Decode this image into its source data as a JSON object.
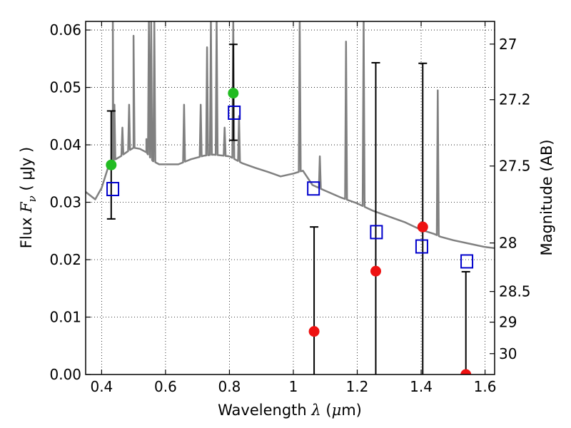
{
  "chart_data": {
    "type": "scatter",
    "title": "",
    "xlabel": {
      "prefix": "Wavelength ",
      "symbol": "λ",
      "unit_open": " (",
      "unit_mu": "μ",
      "unit_rest": "m)"
    },
    "ylabel": {
      "prefix": "Flux ",
      "symbol_main": "F",
      "symbol_sub": "ν",
      "unit": " ( μJy )"
    },
    "y2label": "Magnitude (AB)",
    "xlim": [
      0.35,
      1.63
    ],
    "ylim": [
      0.0,
      0.0615
    ],
    "x_ticks": [
      0.4,
      0.6,
      0.8,
      1.0,
      1.2,
      1.4,
      1.6
    ],
    "x_tick_labels": [
      "0.4",
      "0.6",
      "0.8",
      "1",
      "1.2",
      "1.4",
      "1.6"
    ],
    "y_ticks": [
      0.0,
      0.01,
      0.02,
      0.03,
      0.04,
      0.05,
      0.06
    ],
    "y_tick_labels": [
      "0.00",
      "0.01",
      "0.02",
      "0.03",
      "0.04",
      "0.05",
      "0.06"
    ],
    "y2_ticks": [
      27,
      27.2,
      27.5,
      28,
      28.5,
      29,
      30
    ],
    "y2_tick_labels": [
      "27",
      "27.2",
      "27.5",
      "28",
      "28.5",
      "29",
      "30"
    ],
    "grid": true,
    "colors": {
      "model": "#808080",
      "observed_good": "#22bb22",
      "observed_weak": "#ee1111",
      "model_band": "#0000cc",
      "error": "#000000"
    },
    "model_spectrum": {
      "continuum": [
        [
          0.35,
          0.0318
        ],
        [
          0.38,
          0.0305
        ],
        [
          0.4,
          0.0325
        ],
        [
          0.42,
          0.036
        ],
        [
          0.435,
          0.0372
        ],
        [
          0.46,
          0.038
        ],
        [
          0.48,
          0.0388
        ],
        [
          0.5,
          0.0395
        ],
        [
          0.52,
          0.0393
        ],
        [
          0.54,
          0.0387
        ],
        [
          0.56,
          0.0372
        ],
        [
          0.58,
          0.0366
        ],
        [
          0.6,
          0.0366
        ],
        [
          0.64,
          0.0366
        ],
        [
          0.68,
          0.0375
        ],
        [
          0.72,
          0.0381
        ],
        [
          0.75,
          0.0383
        ],
        [
          0.8,
          0.038
        ],
        [
          0.84,
          0.0368
        ],
        [
          0.88,
          0.036
        ],
        [
          0.92,
          0.0353
        ],
        [
          0.96,
          0.0345
        ],
        [
          1.0,
          0.035
        ],
        [
          1.03,
          0.0355
        ],
        [
          1.06,
          0.033
        ],
        [
          1.1,
          0.032
        ],
        [
          1.15,
          0.0308
        ],
        [
          1.2,
          0.0298
        ],
        [
          1.25,
          0.0285
        ],
        [
          1.3,
          0.0275
        ],
        [
          1.35,
          0.0265
        ],
        [
          1.4,
          0.0252
        ],
        [
          1.44,
          0.0245
        ],
        [
          1.46,
          0.024
        ],
        [
          1.5,
          0.0234
        ],
        [
          1.55,
          0.0228
        ],
        [
          1.6,
          0.0222
        ],
        [
          1.63,
          0.022
        ]
      ],
      "lines": [
        [
          0.435,
          0.0615
        ],
        [
          0.44,
          0.047
        ],
        [
          0.465,
          0.043
        ],
        [
          0.486,
          0.047
        ],
        [
          0.5,
          0.059
        ],
        [
          0.54,
          0.041
        ],
        [
          0.548,
          0.0615
        ],
        [
          0.555,
          0.0615
        ],
        [
          0.565,
          0.0615
        ],
        [
          0.658,
          0.047
        ],
        [
          0.71,
          0.047
        ],
        [
          0.73,
          0.057
        ],
        [
          0.742,
          0.0615
        ],
        [
          0.76,
          0.0615
        ],
        [
          0.785,
          0.043
        ],
        [
          0.812,
          0.0615
        ],
        [
          0.83,
          0.045
        ],
        [
          1.02,
          0.0615
        ],
        [
          1.083,
          0.038
        ],
        [
          1.165,
          0.058
        ],
        [
          1.22,
          0.0615
        ],
        [
          1.452,
          0.0495
        ]
      ]
    },
    "observed": [
      {
        "x": 0.43,
        "y": 0.0365,
        "err_low": 0.0271,
        "err_high": 0.0459,
        "color": "green",
        "cap": "both"
      },
      {
        "x": 0.812,
        "y": 0.049,
        "err_low": 0.0408,
        "err_high": 0.0575,
        "color": "green",
        "cap": "both"
      },
      {
        "x": 1.065,
        "y": 0.0075,
        "err_low": 0.0,
        "err_high": 0.0257,
        "color": "red",
        "cap": "top"
      },
      {
        "x": 1.258,
        "y": 0.018,
        "err_low": 0.0,
        "err_high": 0.0543,
        "color": "red",
        "cap": "top"
      },
      {
        "x": 1.405,
        "y": 0.0257,
        "err_low": 0.0,
        "err_high": 0.0542,
        "color": "red",
        "cap": "top"
      },
      {
        "x": 1.54,
        "y": 0.0,
        "err_low": 0.0,
        "err_high": 0.0179,
        "color": "red",
        "cap": "top"
      }
    ],
    "model_bands": [
      {
        "x": 0.435,
        "y": 0.0323
      },
      {
        "x": 0.815,
        "y": 0.0456
      },
      {
        "x": 1.063,
        "y": 0.0324
      },
      {
        "x": 1.26,
        "y": 0.0248
      },
      {
        "x": 1.402,
        "y": 0.0223
      },
      {
        "x": 1.543,
        "y": 0.0197
      }
    ]
  }
}
